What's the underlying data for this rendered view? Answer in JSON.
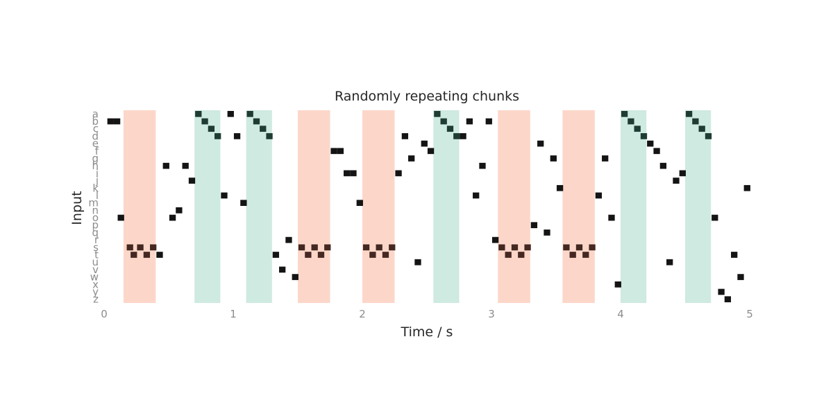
{
  "chart_data": {
    "type": "heatmap",
    "title": "Randomly repeating chunks",
    "xlabel": "Time / s",
    "ylabel": "Input",
    "xlim": [
      0,
      5
    ],
    "x_ticks": [
      "0",
      "1",
      "2",
      "3",
      "4",
      "5"
    ],
    "y_categories": [
      "a",
      "b",
      "c",
      "d",
      "e",
      "f",
      "g",
      "h",
      "i",
      "j",
      "k",
      "l",
      "m",
      "n",
      "o",
      "p",
      "q",
      "r",
      "s",
      "t",
      "u",
      "v",
      "w",
      "x",
      "y",
      "z"
    ],
    "grid": false,
    "colors": {
      "chunk_a": "#fcd7c9",
      "chunk_b": "#cfeae0",
      "spike": "#000000"
    },
    "chunk_a_intervals": [
      [
        0.15,
        0.4
      ],
      [
        1.5,
        1.75
      ],
      [
        2.0,
        2.25
      ],
      [
        3.05,
        3.3
      ],
      [
        3.55,
        3.8
      ]
    ],
    "chunk_b_intervals": [
      [
        0.7,
        0.9
      ],
      [
        1.1,
        1.3
      ],
      [
        2.55,
        2.75
      ],
      [
        4.0,
        4.2
      ],
      [
        4.5,
        4.7
      ]
    ],
    "spikes": [
      {
        "t": 0.05,
        "input": "b"
      },
      {
        "t": 0.1,
        "input": "b"
      },
      {
        "t": 0.13,
        "input": "o"
      },
      {
        "t": 0.2,
        "input": "s"
      },
      {
        "t": 0.23,
        "input": "t"
      },
      {
        "t": 0.28,
        "input": "s"
      },
      {
        "t": 0.33,
        "input": "t"
      },
      {
        "t": 0.38,
        "input": "s"
      },
      {
        "t": 0.43,
        "input": "t"
      },
      {
        "t": 0.48,
        "input": "h"
      },
      {
        "t": 0.53,
        "input": "o"
      },
      {
        "t": 0.58,
        "input": "n"
      },
      {
        "t": 0.63,
        "input": "h"
      },
      {
        "t": 0.68,
        "input": "j"
      },
      {
        "t": 0.73,
        "input": "a"
      },
      {
        "t": 0.78,
        "input": "b"
      },
      {
        "t": 0.83,
        "input": "c"
      },
      {
        "t": 0.88,
        "input": "d"
      },
      {
        "t": 0.93,
        "input": "l"
      },
      {
        "t": 0.98,
        "input": "a"
      },
      {
        "t": 1.03,
        "input": "d"
      },
      {
        "t": 1.08,
        "input": "m"
      },
      {
        "t": 1.13,
        "input": "a"
      },
      {
        "t": 1.18,
        "input": "b"
      },
      {
        "t": 1.23,
        "input": "c"
      },
      {
        "t": 1.28,
        "input": "d"
      },
      {
        "t": 1.33,
        "input": "t"
      },
      {
        "t": 1.38,
        "input": "v"
      },
      {
        "t": 1.43,
        "input": "r"
      },
      {
        "t": 1.48,
        "input": "w"
      },
      {
        "t": 1.53,
        "input": "s"
      },
      {
        "t": 1.58,
        "input": "t"
      },
      {
        "t": 1.63,
        "input": "s"
      },
      {
        "t": 1.68,
        "input": "t"
      },
      {
        "t": 1.73,
        "input": "s"
      },
      {
        "t": 1.78,
        "input": "f"
      },
      {
        "t": 1.83,
        "input": "f"
      },
      {
        "t": 1.88,
        "input": "i"
      },
      {
        "t": 1.93,
        "input": "i"
      },
      {
        "t": 1.98,
        "input": "m"
      },
      {
        "t": 2.03,
        "input": "s"
      },
      {
        "t": 2.08,
        "input": "t"
      },
      {
        "t": 2.13,
        "input": "s"
      },
      {
        "t": 2.18,
        "input": "t"
      },
      {
        "t": 2.23,
        "input": "s"
      },
      {
        "t": 2.28,
        "input": "i"
      },
      {
        "t": 2.33,
        "input": "d"
      },
      {
        "t": 2.38,
        "input": "g"
      },
      {
        "t": 2.43,
        "input": "u"
      },
      {
        "t": 2.48,
        "input": "e"
      },
      {
        "t": 2.53,
        "input": "f"
      },
      {
        "t": 2.58,
        "input": "a"
      },
      {
        "t": 2.63,
        "input": "b"
      },
      {
        "t": 2.68,
        "input": "c"
      },
      {
        "t": 2.73,
        "input": "d"
      },
      {
        "t": 2.78,
        "input": "d"
      },
      {
        "t": 2.83,
        "input": "b"
      },
      {
        "t": 2.88,
        "input": "l"
      },
      {
        "t": 2.93,
        "input": "h"
      },
      {
        "t": 2.98,
        "input": "b"
      },
      {
        "t": 3.03,
        "input": "r"
      },
      {
        "t": 3.08,
        "input": "s"
      },
      {
        "t": 3.13,
        "input": "t"
      },
      {
        "t": 3.18,
        "input": "s"
      },
      {
        "t": 3.23,
        "input": "t"
      },
      {
        "t": 3.28,
        "input": "s"
      },
      {
        "t": 3.33,
        "input": "p"
      },
      {
        "t": 3.38,
        "input": "e"
      },
      {
        "t": 3.43,
        "input": "q"
      },
      {
        "t": 3.48,
        "input": "g"
      },
      {
        "t": 3.53,
        "input": "k"
      },
      {
        "t": 3.58,
        "input": "s"
      },
      {
        "t": 3.63,
        "input": "t"
      },
      {
        "t": 3.68,
        "input": "s"
      },
      {
        "t": 3.73,
        "input": "t"
      },
      {
        "t": 3.78,
        "input": "s"
      },
      {
        "t": 3.83,
        "input": "l"
      },
      {
        "t": 3.88,
        "input": "g"
      },
      {
        "t": 3.93,
        "input": "o"
      },
      {
        "t": 3.98,
        "input": "x"
      },
      {
        "t": 4.03,
        "input": "a"
      },
      {
        "t": 4.08,
        "input": "b"
      },
      {
        "t": 4.13,
        "input": "c"
      },
      {
        "t": 4.18,
        "input": "d"
      },
      {
        "t": 4.23,
        "input": "e"
      },
      {
        "t": 4.28,
        "input": "f"
      },
      {
        "t": 4.33,
        "input": "h"
      },
      {
        "t": 4.38,
        "input": "u"
      },
      {
        "t": 4.43,
        "input": "j"
      },
      {
        "t": 4.48,
        "input": "i"
      },
      {
        "t": 4.53,
        "input": "a"
      },
      {
        "t": 4.58,
        "input": "b"
      },
      {
        "t": 4.63,
        "input": "c"
      },
      {
        "t": 4.68,
        "input": "d"
      },
      {
        "t": 4.73,
        "input": "o"
      },
      {
        "t": 4.78,
        "input": "y"
      },
      {
        "t": 4.83,
        "input": "z"
      },
      {
        "t": 4.88,
        "input": "t"
      },
      {
        "t": 4.93,
        "input": "w"
      },
      {
        "t": 4.98,
        "input": "k"
      }
    ]
  }
}
